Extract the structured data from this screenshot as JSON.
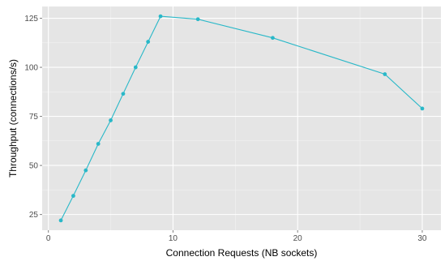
{
  "chart_data": {
    "type": "line",
    "title": "",
    "xlabel": "Connection Requests (NB sockets)",
    "ylabel": "Throughput (connections/s)",
    "xlim": [
      -0.5,
      31.5
    ],
    "ylim": [
      17,
      131
    ],
    "x_ticks": [
      0,
      10,
      20,
      30
    ],
    "y_ticks": [
      25,
      50,
      75,
      100,
      125
    ],
    "x_tick_labels": [
      "0",
      "10",
      "20",
      "30"
    ],
    "y_tick_labels": [
      "25",
      "50",
      "75",
      "100",
      "125"
    ],
    "grid": true,
    "legend": "none",
    "colors": {
      "panel": "#e5e5e5",
      "grid_major": "#ffffff",
      "grid_minor": "#f2f2f2",
      "series": "#29b8c8",
      "tick_mark": "#7f7f7f"
    },
    "series": [
      {
        "x": [
          1,
          2,
          3,
          4,
          5,
          6,
          7,
          8,
          9,
          12,
          18,
          27,
          30
        ],
        "y": [
          22,
          34.5,
          47.5,
          61,
          73,
          86.5,
          100,
          113,
          126,
          124.5,
          115,
          96.5,
          79
        ]
      }
    ]
  }
}
